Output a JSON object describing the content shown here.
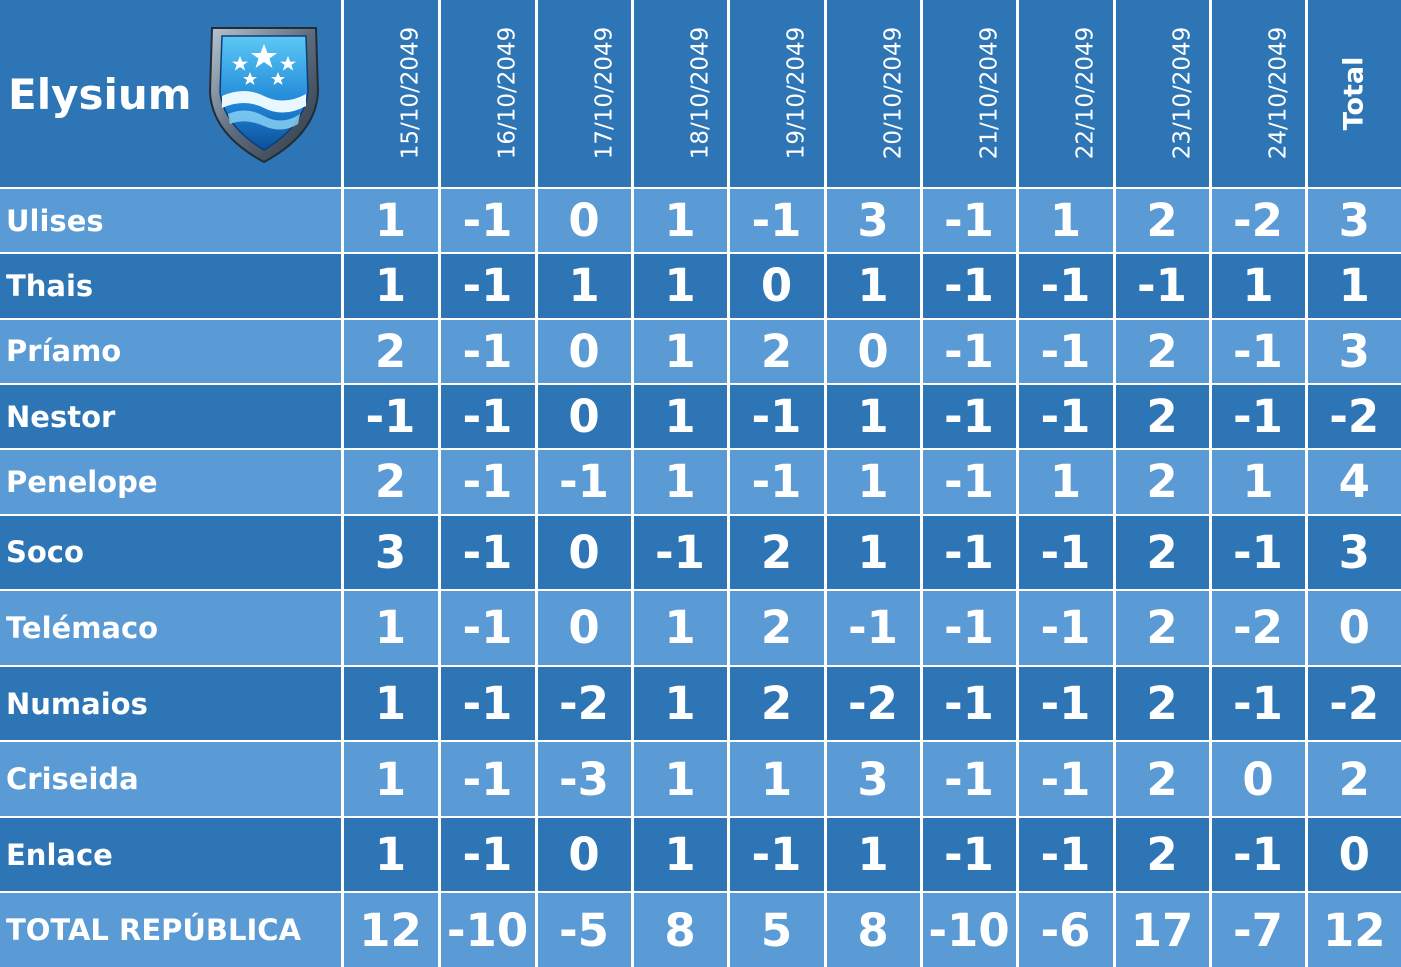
{
  "brand": {
    "title": "Elysium",
    "logo_icon": "shield-stars-emblem-icon"
  },
  "columns": [
    "15/10/2049",
    "16/10/2049",
    "17/10/2049",
    "18/10/2049",
    "19/10/2049",
    "20/10/2049",
    "21/10/2049",
    "22/10/2049",
    "23/10/2049",
    "24/10/2049"
  ],
  "total_label": "Total",
  "rows": [
    {
      "name": "Ulises",
      "values": [
        "1",
        "-1",
        "0",
        "1",
        "-1",
        "3",
        "-1",
        "1",
        "2",
        "-2"
      ],
      "total": "3"
    },
    {
      "name": "Thais",
      "values": [
        "1",
        "-1",
        "1",
        "1",
        "0",
        "1",
        "-1",
        "-1",
        "-1",
        "1"
      ],
      "total": "1"
    },
    {
      "name": "Príamo",
      "values": [
        "2",
        "-1",
        "0",
        "1",
        "2",
        "0",
        "-1",
        "-1",
        "2",
        "-1"
      ],
      "total": "3"
    },
    {
      "name": "Nestor",
      "values": [
        "-1",
        "-1",
        "0",
        "1",
        "-1",
        "1",
        "-1",
        "-1",
        "2",
        "-1"
      ],
      "total": "-2"
    },
    {
      "name": "Penelope",
      "values": [
        "2",
        "-1",
        "-1",
        "1",
        "-1",
        "1",
        "-1",
        "1",
        "2",
        "1"
      ],
      "total": "4"
    },
    {
      "name": "Soco",
      "values": [
        "3",
        "-1",
        "0",
        "-1",
        "2",
        "1",
        "-1",
        "-1",
        "2",
        "-1"
      ],
      "total": "3"
    },
    {
      "name": "Telémaco",
      "values": [
        "1",
        "-1",
        "0",
        "1",
        "2",
        "-1",
        "-1",
        "-1",
        "2",
        "-2"
      ],
      "total": "0"
    },
    {
      "name": "Numaios",
      "values": [
        "1",
        "-1",
        "-2",
        "1",
        "2",
        "-2",
        "-1",
        "-1",
        "2",
        "-1"
      ],
      "total": "-2"
    },
    {
      "name": "Criseida",
      "values": [
        "1",
        "-1",
        "-3",
        "1",
        "1",
        "3",
        "-1",
        "-1",
        "2",
        "0"
      ],
      "total": "2"
    },
    {
      "name": "Enlace",
      "values": [
        "1",
        "-1",
        "0",
        "1",
        "-1",
        "1",
        "-1",
        "-1",
        "2",
        "-1"
      ],
      "total": "0"
    }
  ],
  "total_row": {
    "name": "TOTAL REPÚBLICA",
    "values": [
      "12",
      "-10",
      "-5",
      "8",
      "5",
      "8",
      "-10",
      "-6",
      "17",
      "-7"
    ],
    "total": "12"
  },
  "colors": {
    "light_band": "#5b9bd5",
    "dark_band": "#2e75b6",
    "text": "#ffffff"
  }
}
